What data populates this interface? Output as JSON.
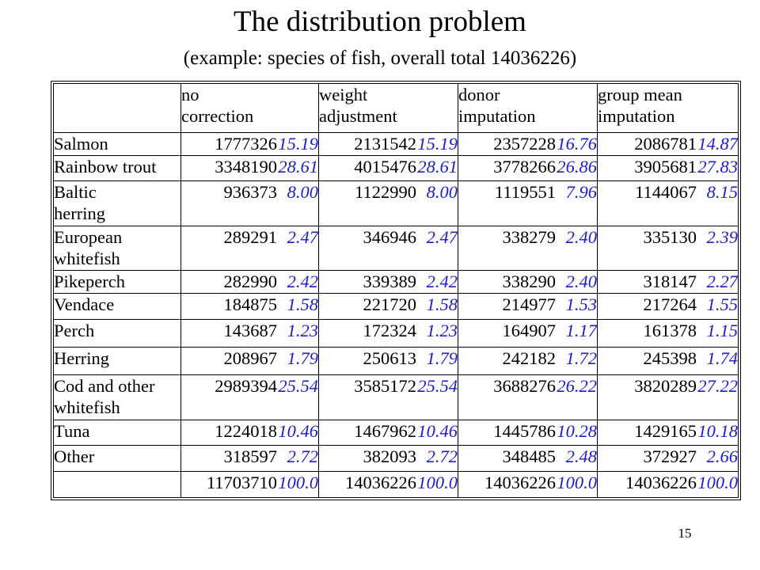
{
  "slide": {
    "title": "The distribution problem",
    "subtitle": "(example: species of fish, overall total 14036226)",
    "page_number": "15"
  },
  "colors": {
    "percent_text": "#1c1ccc",
    "count_text": "#000000"
  },
  "table": {
    "headers": [
      [],
      [
        "no",
        "correction"
      ],
      [
        "weight",
        "adjustment"
      ],
      [
        "donor",
        "imputation"
      ],
      [
        "group mean",
        "imputation"
      ]
    ],
    "rows": [
      {
        "label": [
          "Salmon"
        ],
        "cells": [
          {
            "count": "1777326",
            "pct": "15.19"
          },
          {
            "count": "2131542",
            "pct": "15.19"
          },
          {
            "count": "2357228",
            "pct": "16.76"
          },
          {
            "count": "2086781",
            "pct": "14.87"
          }
        ]
      },
      {
        "label": [
          "Rainbow trout"
        ],
        "cells": [
          {
            "count": "3348190",
            "pct": "28.61"
          },
          {
            "count": "4015476",
            "pct": "28.61"
          },
          {
            "count": "3778266",
            "pct": "26.86"
          },
          {
            "count": "3905681",
            "pct": "27.83"
          }
        ]
      },
      {
        "label": [
          "Baltic",
          "herring"
        ],
        "cells": [
          {
            "count": "936373",
            "pct": "8.00"
          },
          {
            "count": "1122990",
            "pct": "8.00"
          },
          {
            "count": "1119551",
            "pct": "7.96"
          },
          {
            "count": "1144067",
            "pct": "8.15"
          }
        ]
      },
      {
        "label": [
          "European",
          "whitefish"
        ],
        "cells": [
          {
            "count": "289291",
            "pct": "2.47"
          },
          {
            "count": "346946",
            "pct": "2.47"
          },
          {
            "count": "338279",
            "pct": "2.40"
          },
          {
            "count": "335130",
            "pct": "2.39"
          }
        ]
      },
      {
        "label": [
          "Pikeperch"
        ],
        "cells": [
          {
            "count": "282990",
            "pct": "2.42"
          },
          {
            "count": "339389",
            "pct": "2.42"
          },
          {
            "count": "338290",
            "pct": "2.40"
          },
          {
            "count": "318147",
            "pct": "2.27"
          }
        ]
      },
      {
        "label": [
          "Vendace"
        ],
        "cells": [
          {
            "count": "184875",
            "pct": "1.58"
          },
          {
            "count": "221720",
            "pct": "1.58"
          },
          {
            "count": "214977",
            "pct": "1.53"
          },
          {
            "count": "217264",
            "pct": "1.55"
          }
        ]
      },
      {
        "label": [
          "Perch"
        ],
        "cells": [
          {
            "count": "143687",
            "pct": "1.23"
          },
          {
            "count": "172324",
            "pct": "1.23"
          },
          {
            "count": "164907",
            "pct": "1.17"
          },
          {
            "count": "161378",
            "pct": "1.15"
          }
        ]
      },
      {
        "label": [
          "Herring"
        ],
        "cells": [
          {
            "count": "208967",
            "pct": "1.79"
          },
          {
            "count": "250613",
            "pct": "1.79"
          },
          {
            "count": "242182",
            "pct": "1.72"
          },
          {
            "count": "245398",
            "pct": "1.74"
          }
        ]
      },
      {
        "label": [
          "Cod and other",
          "whitefish"
        ],
        "cells": [
          {
            "count": "2989394",
            "pct": "25.54"
          },
          {
            "count": "3585172",
            "pct": "25.54"
          },
          {
            "count": "3688276",
            "pct": "26.22"
          },
          {
            "count": "3820289",
            "pct": "27.22"
          }
        ]
      },
      {
        "label": [
          "Tuna"
        ],
        "cells": [
          {
            "count": "1224018",
            "pct": "10.46"
          },
          {
            "count": "1467962",
            "pct": "10.46"
          },
          {
            "count": "1445786",
            "pct": "10.28"
          },
          {
            "count": "1429165",
            "pct": "10.18"
          }
        ]
      },
      {
        "label": [
          "Other"
        ],
        "cells": [
          {
            "count": "318597",
            "pct": "2.72"
          },
          {
            "count": "382093",
            "pct": "2.72"
          },
          {
            "count": "348485",
            "pct": "2.48"
          },
          {
            "count": "372927",
            "pct": "2.66"
          }
        ]
      },
      {
        "label": [],
        "cells": [
          {
            "count": "11703710",
            "pct": "100.0"
          },
          {
            "count": "14036226",
            "pct": "100.0"
          },
          {
            "count": "14036226",
            "pct": "100.0"
          },
          {
            "count": "14036226",
            "pct": "100.0"
          }
        ]
      }
    ]
  }
}
